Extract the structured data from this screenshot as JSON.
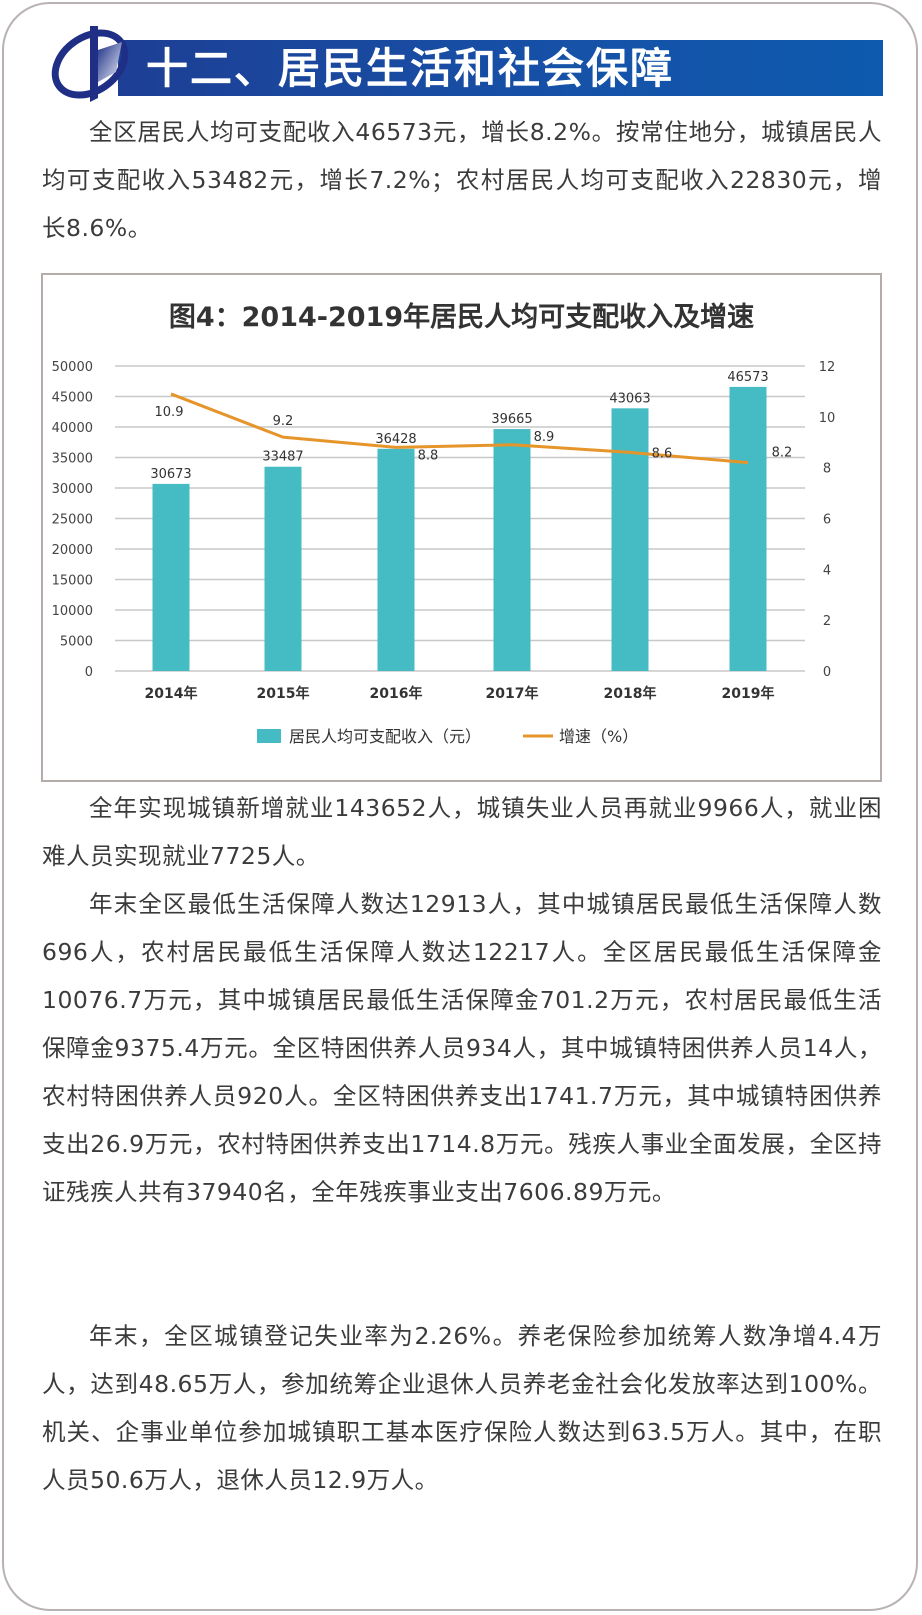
{
  "section": {
    "title": "十二、居民生活和社会保障",
    "logo_icon": "statistics-bureau-logo-icon"
  },
  "paragraphs": [
    "全区居民人均可支配收入46573元，增长8.2%。按常住地分，城镇居民人均可支配收入53482元，增长7.2%；农村居民人均可支配收入22830元，增长8.6%。",
    "全年实现城镇新增就业143652人，城镇失业人员再就业9966人，就业困难人员实现就业7725人。",
    "年末全区最低生活保障人数达12913人，其中城镇居民最低生活保障人数696人，农村居民最低生活保障人数达12217人。全区居民最低生活保障金10076.7万元，其中城镇居民最低生活保障金701.2万元，农村居民最低生活保障金9375.4万元。全区特困供养人员934人，其中城镇特困供养人员14人，农村特困供养人员920人。全区特困供养支出1741.7万元，其中城镇特困供养支出26.9万元，农村特困供养支出1714.8万元。残疾人事业全面发展，全区持证残疾人共有37940名，全年残疾事业支出7606.89万元。",
    "年末，全区城镇登记失业率为2.26%。养老保险参加统筹人数净增4.4万人，达到48.65万人，参加统筹企业退休人员养老金社会化发放率达到100%。机关、企事业单位参加城镇职工基本医疗保险人数达到63.5万人。其中，在职人员50.6万人，退休人员12.9万人。"
  ],
  "colors": {
    "header_blue": "#1552a8",
    "bar": "#45bcc3",
    "line": "#e6952a",
    "grid": "#c8c8c8"
  },
  "chart_data": {
    "type": "bar",
    "title": "图4：2014-2019年居民人均可支配收入及增速",
    "categories": [
      "2014年",
      "2015年",
      "2016年",
      "2017年",
      "2018年",
      "2019年"
    ],
    "series": [
      {
        "name": "居民人均可支配收入（元）",
        "type": "bar",
        "axis": "left",
        "values": [
          30673,
          33487,
          36428,
          39665,
          43063,
          46573
        ]
      },
      {
        "name": "增速（%）",
        "type": "line",
        "axis": "right",
        "values": [
          10.9,
          9.2,
          8.8,
          8.9,
          8.6,
          8.2
        ]
      }
    ],
    "xlabel": "",
    "ylabel": "",
    "ylim": [
      0,
      50000
    ],
    "yticks": [
      0,
      5000,
      10000,
      15000,
      20000,
      25000,
      30000,
      35000,
      40000,
      45000,
      50000
    ],
    "y2lim": [
      0,
      12
    ],
    "y2ticks": [
      0,
      2,
      4,
      6,
      8,
      10,
      12
    ],
    "grid": true,
    "legend_position": "bottom",
    "legend": [
      "居民人均可支配收入（元）",
      "增速（%）"
    ]
  }
}
